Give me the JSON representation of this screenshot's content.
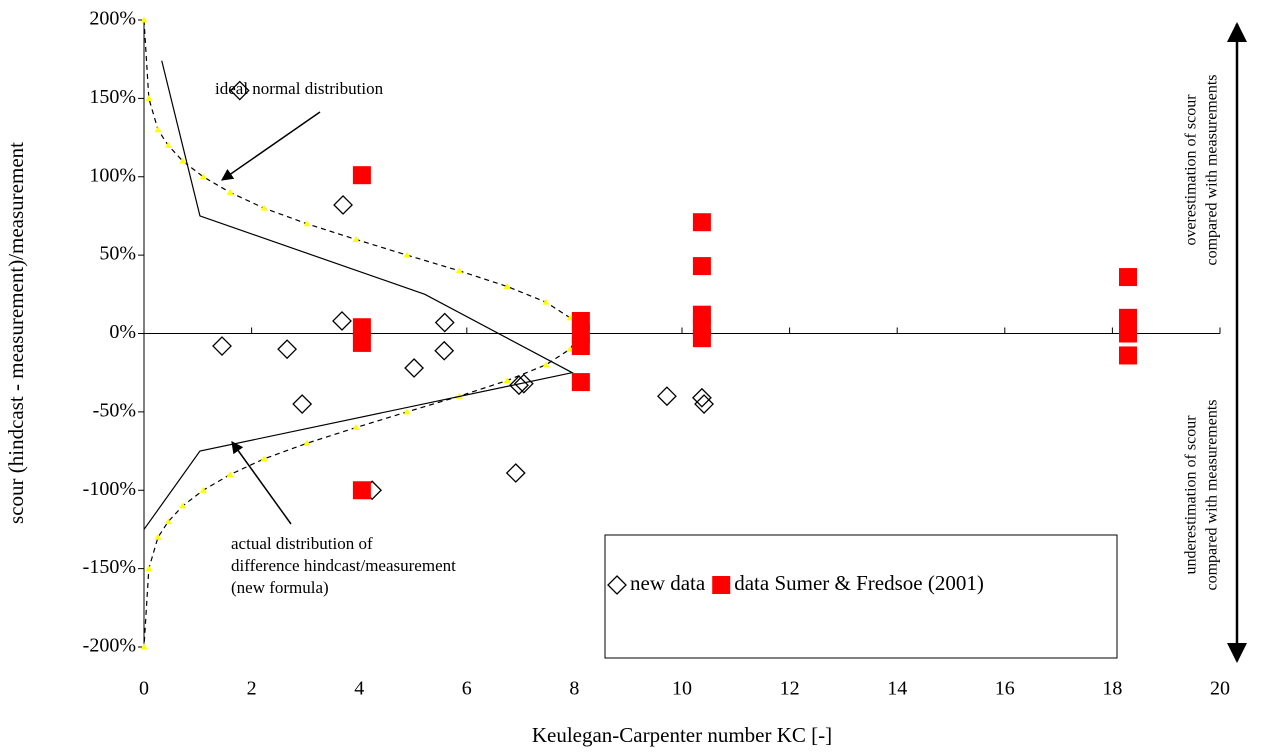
{
  "chart_data": {
    "type": "scatter",
    "x_label": "Keulegan-Carpenter number KC [-]",
    "y_label": "scour (hindcast - measurement)/measurement",
    "xlim": [
      0,
      20
    ],
    "xticks": [
      0,
      2,
      4,
      6,
      8,
      10,
      12,
      14,
      16,
      18,
      20
    ],
    "ylim": [
      -200,
      200
    ],
    "yticks": [
      {
        "value": -200,
        "label": "-200%"
      },
      {
        "value": -150,
        "label": "-150%"
      },
      {
        "value": -100,
        "label": "-100%"
      },
      {
        "value": -50,
        "label": "-50%"
      },
      {
        "value": 0,
        "label": "0%"
      },
      {
        "value": 50,
        "label": "50%"
      },
      {
        "value": 100,
        "label": "100%"
      },
      {
        "value": 150,
        "label": "150%"
      },
      {
        "value": 200,
        "label": "200%"
      }
    ],
    "grid": false,
    "series": [
      {
        "name": "new data",
        "marker": "diamond",
        "color": "#000000",
        "x": [
          1.78,
          3.7,
          3.68,
          1.45,
          2.66,
          2.94,
          5.59,
          5.58,
          5.02,
          6.97,
          7.06,
          6.91,
          9.72,
          10.37,
          10.41,
          4.24
        ],
        "values": [
          155,
          82,
          8,
          -8,
          -10,
          -45,
          7,
          -11,
          -22,
          -33,
          -32,
          -89,
          -40,
          -41,
          -45,
          -100
        ]
      },
      {
        "name": "data Sumer & Fredsoe (2001)",
        "marker": "square",
        "color": "#ff0000",
        "x": [
          4.05,
          4.05,
          4.05,
          4.05,
          8.12,
          8.12,
          8.12,
          8.12,
          10.37,
          10.37,
          10.37,
          10.37,
          10.37,
          18.29,
          18.29,
          18.29,
          18.29
        ],
        "values": [
          101,
          4,
          -6,
          -100,
          8,
          0,
          -8,
          -31,
          71,
          43,
          12,
          4,
          -3,
          36,
          10,
          0,
          -14
        ]
      }
    ],
    "curves": [
      {
        "label": [
          "ideal normal distribution"
        ],
        "style": "dashed",
        "color": "#000000",
        "marker_color": "#ffff00",
        "x": [
          0,
          0.09,
          0.26,
          0.45,
          0.72,
          1.1,
          1.6,
          2.23,
          3.03,
          3.94,
          4.89,
          5.86,
          6.75,
          7.47,
          7.92,
          8.1,
          7.92,
          7.47,
          6.75,
          5.86,
          4.89,
          3.94,
          3.03,
          2.23,
          1.6,
          1.1,
          0.72,
          0.45,
          0.26,
          0.09,
          0
        ],
        "values": [
          200,
          150,
          130,
          120,
          110,
          100,
          90,
          80,
          70,
          60,
          50,
          40,
          30,
          20,
          10,
          0,
          -10,
          -20,
          -30,
          -40,
          -50,
          -60,
          -70,
          -80,
          -90,
          -100,
          -110,
          -120,
          -130,
          -150,
          -200
        ]
      },
      {
        "label": [
          "actual distribution of",
          "difference hindcast/measurement",
          "(new formula)"
        ],
        "style": "solid",
        "color": "#000000",
        "x": [
          0.33,
          1.04,
          5.22,
          7.96,
          1.04,
          0
        ],
        "values": [
          174,
          75,
          25,
          -25,
          -75,
          -125
        ]
      }
    ],
    "side_labels": {
      "top": [
        "overestimation of scour",
        "compared with measurements"
      ],
      "bottom": [
        "underestimation of scour",
        "compared with measurements"
      ]
    }
  }
}
